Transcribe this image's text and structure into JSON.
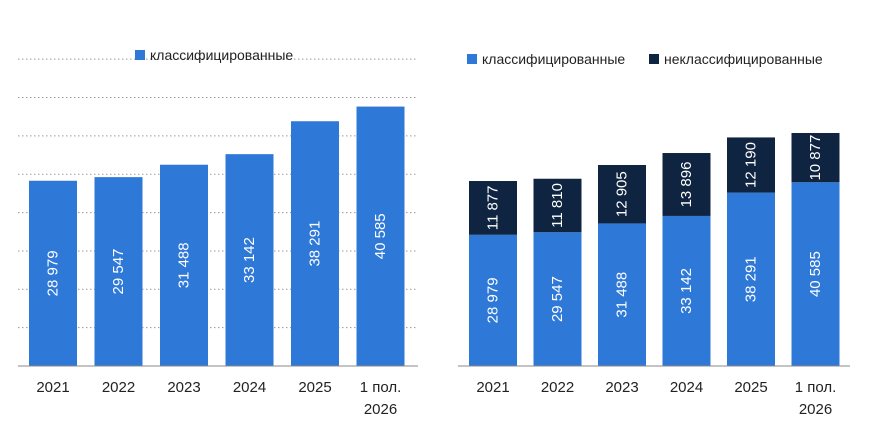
{
  "chart_data": [
    {
      "type": "bar",
      "categories": [
        "2021",
        "2022",
        "2023",
        "2024",
        "2025",
        "1 пол. 2026"
      ],
      "series": [
        {
          "name": "классифицированные",
          "values": [
            28979,
            29547,
            31488,
            33142,
            38291,
            40585
          ],
          "color": "#2e78d8"
        }
      ],
      "value_labels": [
        "28 979",
        "29 547",
        "31 488",
        "33 142",
        "38 291",
        "40 585"
      ],
      "ylim": [
        0,
        51000
      ],
      "grid": true,
      "legend": "top-center",
      "value_label_orientation": "vertical"
    },
    {
      "type": "bar",
      "stacked": true,
      "categories": [
        "2021",
        "2022",
        "2023",
        "2024",
        "2025",
        "1 пол. 2026"
      ],
      "series": [
        {
          "name": "классифицированные",
          "values": [
            28979,
            29547,
            31488,
            33142,
            38291,
            40585
          ],
          "color": "#2e78d8",
          "value_labels": [
            "28 979",
            "29 547",
            "31 488",
            "33 142",
            "38 291",
            "40 585"
          ]
        },
        {
          "name": "неклассифицированные",
          "values": [
            11877,
            11810,
            12905,
            13896,
            12190,
            10877
          ],
          "color": "#0f2440",
          "value_labels": [
            "11 877",
            "11 810",
            "12 905",
            "13 896",
            "12 190",
            "10 877"
          ]
        }
      ],
      "ylim": [
        0,
        72000
      ],
      "grid": false,
      "legend": "top-center",
      "value_label_orientation": "vertical"
    }
  ]
}
